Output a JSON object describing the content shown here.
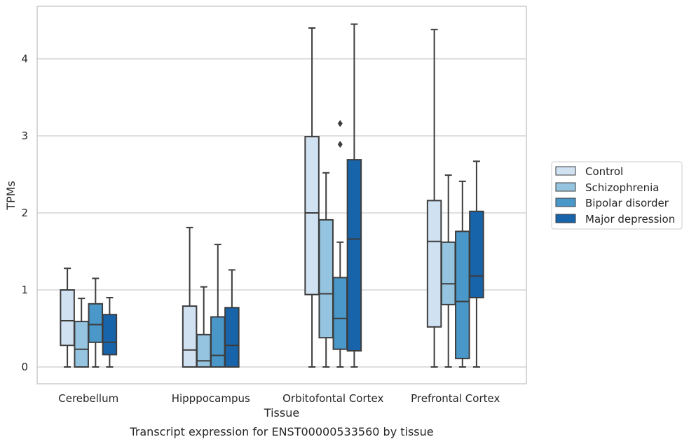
{
  "caption": "Transcript expression for ENST00000533560 by tissue",
  "chart_data": {
    "type": "boxplot",
    "xlabel": "Tissue",
    "ylabel": "TPMs",
    "ylim": [
      -0.22,
      4.7
    ],
    "yticks": [
      0,
      1,
      2,
      3,
      4
    ],
    "grid": "horizontal",
    "legend_position": "right",
    "categories": [
      "Cerebellum",
      "Hipppocampus",
      "Orbitofontal Cortex",
      "Prefrontal Cortex"
    ],
    "series": [
      {
        "name": "Control",
        "color": "#d0e1f2",
        "boxes": [
          {
            "whisker_low": 0,
            "q1": 0.28,
            "median": 0.6,
            "q3": 1.0,
            "whisker_high": 1.28,
            "outliers": []
          },
          {
            "whisker_low": 0,
            "q1": 0,
            "median": 0.22,
            "q3": 0.79,
            "whisker_high": 1.81,
            "outliers": []
          },
          {
            "whisker_low": 0,
            "q1": 0.94,
            "median": 2.0,
            "q3": 2.99,
            "whisker_high": 4.4,
            "outliers": []
          },
          {
            "whisker_low": 0,
            "q1": 0.52,
            "median": 1.63,
            "q3": 2.16,
            "whisker_high": 4.38,
            "outliers": []
          }
        ]
      },
      {
        "name": "Schizophrenia",
        "color": "#94c4df",
        "boxes": [
          {
            "whisker_low": 0,
            "q1": 0,
            "median": 0.23,
            "q3": 0.59,
            "whisker_high": 0.89,
            "outliers": []
          },
          {
            "whisker_low": 0,
            "q1": 0,
            "median": 0.08,
            "q3": 0.42,
            "whisker_high": 1.04,
            "outliers": []
          },
          {
            "whisker_low": 0,
            "q1": 0.38,
            "median": 0.95,
            "q3": 1.91,
            "whisker_high": 2.52,
            "outliers": []
          },
          {
            "whisker_low": 0,
            "q1": 0.81,
            "median": 1.08,
            "q3": 1.62,
            "whisker_high": 2.49,
            "outliers": []
          }
        ]
      },
      {
        "name": "Bipolar disorder",
        "color": "#4a98c9",
        "boxes": [
          {
            "whisker_low": 0,
            "q1": 0.32,
            "median": 0.55,
            "q3": 0.82,
            "whisker_high": 1.15,
            "outliers": []
          },
          {
            "whisker_low": 0,
            "q1": 0,
            "median": 0.15,
            "q3": 0.65,
            "whisker_high": 1.59,
            "outliers": []
          },
          {
            "whisker_low": 0,
            "q1": 0.23,
            "median": 0.63,
            "q3": 1.16,
            "whisker_high": 1.62,
            "outliers": [
              2.89,
              3.16
            ]
          },
          {
            "whisker_low": 0,
            "q1": 0.11,
            "median": 0.85,
            "q3": 1.76,
            "whisker_high": 2.41,
            "outliers": []
          }
        ]
      },
      {
        "name": "Major depression",
        "color": "#1764ab",
        "boxes": [
          {
            "whisker_low": 0,
            "q1": 0.16,
            "median": 0.32,
            "q3": 0.68,
            "whisker_high": 0.9,
            "outliers": []
          },
          {
            "whisker_low": 0,
            "q1": 0,
            "median": 0.28,
            "q3": 0.77,
            "whisker_high": 1.26,
            "outliers": []
          },
          {
            "whisker_low": 0,
            "q1": 0.21,
            "median": 1.66,
            "q3": 2.69,
            "whisker_high": 4.45,
            "outliers": []
          },
          {
            "whisker_low": 0,
            "q1": 0.9,
            "median": 1.18,
            "q3": 2.02,
            "whisker_high": 2.67,
            "outliers": []
          }
        ]
      }
    ]
  }
}
